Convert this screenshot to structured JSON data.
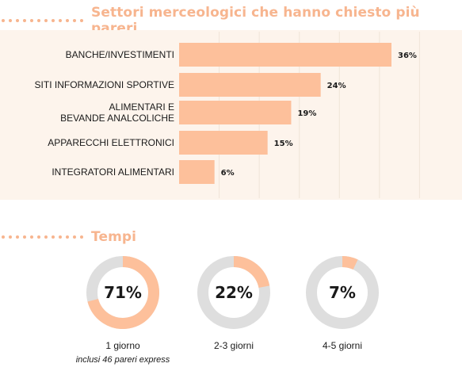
{
  "sections": {
    "settori_title": "Settori merceologici che hanno chiesto più pareri",
    "tempi_title": "Tempi"
  },
  "colors": {
    "accent": "#f7b58f",
    "bar": "#fdc09b",
    "panel": "#fdf4ec",
    "donut_track": "#dedede"
  },
  "chart_data": [
    {
      "type": "bar",
      "orientation": "horizontal",
      "title": "Settori merceologici che hanno chiesto più pareri",
      "categories": [
        [
          "BANCHE/INVESTIMENTI"
        ],
        [
          "SITI INFORMAZIONI SPORTIVE"
        ],
        [
          "ALIMENTARI E",
          "BEVANDE ANALCOLICHE"
        ],
        [
          "APPARECCHI ELETTRONICI"
        ],
        [
          "INTEGRATORI ALIMENTARI"
        ]
      ],
      "values": [
        36,
        24,
        19,
        15,
        6
      ],
      "value_labels": [
        "36%",
        "24%",
        "19%",
        "15%",
        "6%"
      ],
      "xlim": [
        0,
        36
      ],
      "grid": true
    },
    {
      "type": "pie",
      "variant": "donut",
      "title": "Tempi",
      "items": [
        {
          "value": 71,
          "value_label": "71%",
          "label": "1 giorno",
          "sublabel": "inclusi 46 pareri express"
        },
        {
          "value": 22,
          "value_label": "22%",
          "label": "2-3 giorni",
          "sublabel": ""
        },
        {
          "value": 7,
          "value_label": "7%",
          "label": "4-5 giorni",
          "sublabel": ""
        }
      ]
    }
  ]
}
